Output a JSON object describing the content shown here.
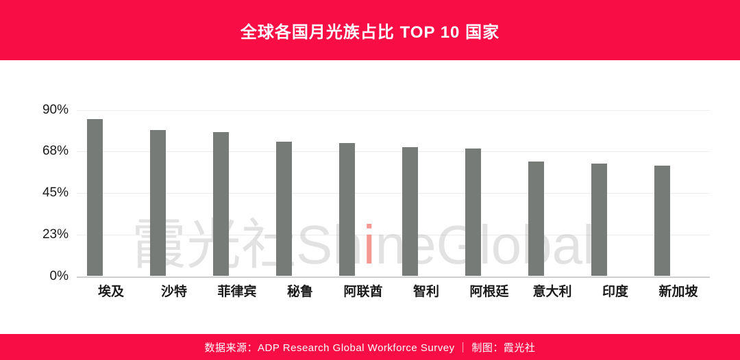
{
  "header": {
    "title": "全球各国月光族占比 TOP 10 国家"
  },
  "watermark": {
    "prefix": "霞光社Sh",
    "accent": "i",
    "suffix": "neGlobal"
  },
  "footer": {
    "text": "数据来源：ADP Research Global Workforce Survey ｜ 制图：霞光社"
  },
  "theme": {
    "accent_red": "#f90d45",
    "bar_color": "#767b77",
    "grid_color": "#ededed",
    "axis_line_color": "#cfcfcf",
    "text_color": "#1a1a1a"
  },
  "chart_data": {
    "type": "bar",
    "title": "全球各国月光族占比 TOP 10 国家",
    "categories": [
      "埃及",
      "沙特",
      "菲律宾",
      "秘鲁",
      "阿联酋",
      "智利",
      "阿根廷",
      "意大利",
      "印度",
      "新加坡"
    ],
    "values": [
      85,
      79,
      78,
      73,
      72,
      70,
      69,
      62,
      61,
      60
    ],
    "unit": "%",
    "xlabel": "",
    "ylabel": "",
    "ylim": [
      0,
      90
    ],
    "yticks": [
      {
        "value": 0,
        "label": "0%"
      },
      {
        "value": 22.5,
        "label": "23%"
      },
      {
        "value": 45,
        "label": "45%"
      },
      {
        "value": 67.5,
        "label": "68%"
      },
      {
        "value": 90,
        "label": "90%"
      }
    ],
    "grid": true,
    "legend": false,
    "source": "ADP Research Global Workforce Survey"
  }
}
